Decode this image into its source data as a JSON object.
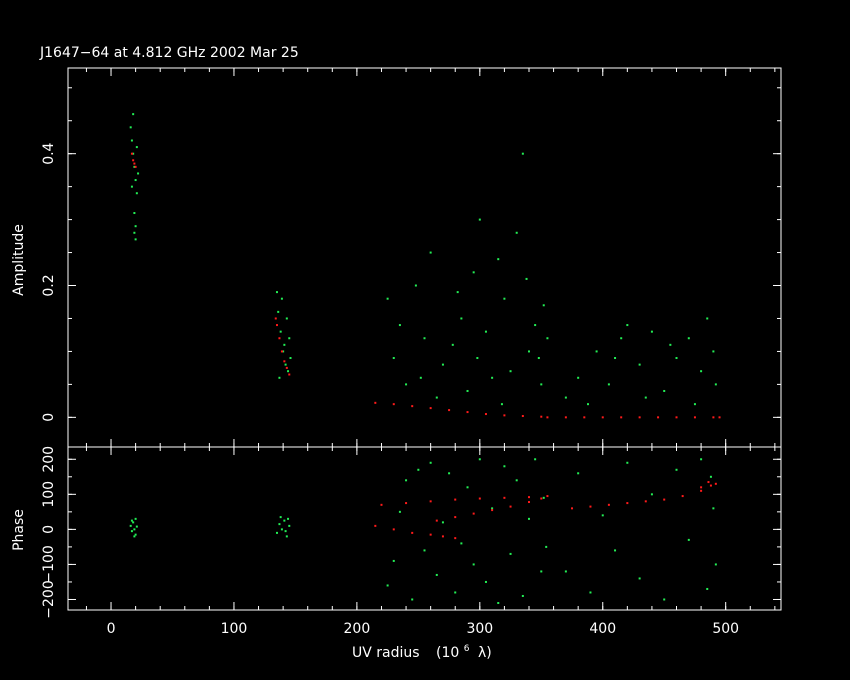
{
  "chart_data": [
    {
      "type": "scatter",
      "title": "J1647−64 at 4.812 GHz 2002 Mar 25",
      "ylabel": "Amplitude",
      "xlim": [
        -35,
        545
      ],
      "ylim": [
        -0.045,
        0.53
      ],
      "yticks": [
        0,
        0.2,
        0.4
      ],
      "ytick_labels": [
        "0",
        "0.2",
        "0.4"
      ],
      "series": [
        {
          "color": "#22ee55",
          "points": [
            [
              17,
              0.42
            ],
            [
              18,
              0.4
            ],
            [
              19,
              0.38
            ],
            [
              20,
              0.36
            ],
            [
              16,
              0.44
            ],
            [
              21,
              0.34
            ],
            [
              19,
              0.31
            ],
            [
              20,
              0.29
            ],
            [
              18,
              0.46
            ],
            [
              22,
              0.37
            ],
            [
              17,
              0.35
            ],
            [
              21,
              0.41
            ],
            [
              19,
              0.28
            ],
            [
              20,
              0.27
            ],
            [
              135,
              0.19
            ],
            [
              136,
              0.16
            ],
            [
              138,
              0.13
            ],
            [
              140,
              0.1
            ],
            [
              142,
              0.08
            ],
            [
              137,
              0.06
            ],
            [
              143,
              0.15
            ],
            [
              145,
              0.12
            ],
            [
              139,
              0.18
            ],
            [
              144,
              0.07
            ],
            [
              141,
              0.11
            ],
            [
              146,
              0.09
            ],
            [
              225,
              0.18
            ],
            [
              240,
              0.05
            ],
            [
              255,
              0.12
            ],
            [
              260,
              0.25
            ],
            [
              270,
              0.08
            ],
            [
              285,
              0.15
            ],
            [
              295,
              0.22
            ],
            [
              300,
              0.3
            ],
            [
              310,
              0.06
            ],
            [
              320,
              0.18
            ],
            [
              330,
              0.28
            ],
            [
              335,
              0.4
            ],
            [
              340,
              0.1
            ],
            [
              345,
              0.14
            ],
            [
              350,
              0.05
            ],
            [
              352,
              0.17
            ],
            [
              230,
              0.09
            ],
            [
              248,
              0.2
            ],
            [
              265,
              0.03
            ],
            [
              278,
              0.11
            ],
            [
              290,
              0.04
            ],
            [
              305,
              0.13
            ],
            [
              315,
              0.24
            ],
            [
              325,
              0.07
            ],
            [
              338,
              0.21
            ],
            [
              348,
              0.09
            ],
            [
              355,
              0.12
            ],
            [
              235,
              0.14
            ],
            [
              252,
              0.06
            ],
            [
              282,
              0.19
            ],
            [
              298,
              0.09
            ],
            [
              318,
              0.02
            ],
            [
              370,
              0.03
            ],
            [
              380,
              0.06
            ],
            [
              395,
              0.1
            ],
            [
              405,
              0.05
            ],
            [
              415,
              0.12
            ],
            [
              420,
              0.14
            ],
            [
              430,
              0.08
            ],
            [
              440,
              0.13
            ],
            [
              450,
              0.04
            ],
            [
              460,
              0.09
            ],
            [
              470,
              0.12
            ],
            [
              480,
              0.07
            ],
            [
              485,
              0.15
            ],
            [
              490,
              0.1
            ],
            [
              492,
              0.05
            ],
            [
              475,
              0.02
            ],
            [
              455,
              0.11
            ],
            [
              435,
              0.03
            ],
            [
              410,
              0.09
            ],
            [
              388,
              0.02
            ]
          ]
        },
        {
          "color": "#ff1a1a",
          "points": [
            [
              17,
              0.4
            ],
            [
              18,
              0.39
            ],
            [
              19,
              0.385
            ],
            [
              20,
              0.38
            ],
            [
              134,
              0.15
            ],
            [
              135,
              0.14
            ],
            [
              137,
              0.12
            ],
            [
              139,
              0.1
            ],
            [
              141,
              0.085
            ],
            [
              143,
              0.075
            ],
            [
              145,
              0.065
            ],
            [
              215,
              0.022
            ],
            [
              230,
              0.02
            ],
            [
              245,
              0.017
            ],
            [
              260,
              0.014
            ],
            [
              275,
              0.011
            ],
            [
              290,
              0.008
            ],
            [
              305,
              0.005
            ],
            [
              320,
              0.003
            ],
            [
              335,
              0.002
            ],
            [
              350,
              0.001
            ],
            [
              355,
              0.0
            ],
            [
              370,
              0.0
            ],
            [
              385,
              0.0
            ],
            [
              400,
              0.0
            ],
            [
              415,
              0.0
            ],
            [
              430,
              0.0
            ],
            [
              445,
              0.0
            ],
            [
              460,
              0.0
            ],
            [
              475,
              0.0
            ],
            [
              490,
              0.0
            ],
            [
              495,
              0.0
            ]
          ]
        }
      ]
    },
    {
      "type": "scatter",
      "ylabel": "Phase",
      "xlabel_main": "UV radius",
      "xlabel_unit": "(10",
      "xlabel_exp": "6",
      "xlabel_symbol": "λ)",
      "xlim": [
        -35,
        545
      ],
      "ylim": [
        -230,
        235
      ],
      "xticks": [
        0,
        100,
        200,
        300,
        400,
        500
      ],
      "xtick_labels": [
        "0",
        "100",
        "200",
        "300",
        "400",
        "500"
      ],
      "yticks": [
        -200,
        -100,
        0,
        100,
        200
      ],
      "ytick_labels": [
        "−200",
        "−100",
        "0",
        "100",
        "200"
      ],
      "series": [
        {
          "color": "#22ee55",
          "points": [
            [
              16,
              10
            ],
            [
              17,
              -5
            ],
            [
              18,
              20
            ],
            [
              19,
              0
            ],
            [
              20,
              -15
            ],
            [
              21,
              8
            ],
            [
              17,
              25
            ],
            [
              19,
              -20
            ],
            [
              20,
              30
            ],
            [
              135,
              -10
            ],
            [
              137,
              15
            ],
            [
              139,
              0
            ],
            [
              141,
              25
            ],
            [
              143,
              -20
            ],
            [
              145,
              10
            ],
            [
              138,
              35
            ],
            [
              142,
              -5
            ],
            [
              144,
              30
            ],
            [
              225,
              -160
            ],
            [
              230,
              -90
            ],
            [
              235,
              50
            ],
            [
              240,
              140
            ],
            [
              245,
              -200
            ],
            [
              250,
              170
            ],
            [
              255,
              -60
            ],
            [
              260,
              190
            ],
            [
              265,
              -130
            ],
            [
              270,
              20
            ],
            [
              275,
              160
            ],
            [
              280,
              -180
            ],
            [
              285,
              -40
            ],
            [
              290,
              120
            ],
            [
              295,
              -100
            ],
            [
              300,
              200
            ],
            [
              305,
              -150
            ],
            [
              310,
              60
            ],
            [
              315,
              -210
            ],
            [
              320,
              180
            ],
            [
              325,
              -70
            ],
            [
              330,
              140
            ],
            [
              335,
              -190
            ],
            [
              340,
              30
            ],
            [
              345,
              200
            ],
            [
              350,
              -120
            ],
            [
              352,
              90
            ],
            [
              354,
              -50
            ],
            [
              370,
              -120
            ],
            [
              380,
              160
            ],
            [
              390,
              -180
            ],
            [
              400,
              40
            ],
            [
              410,
              -60
            ],
            [
              420,
              190
            ],
            [
              430,
              -140
            ],
            [
              440,
              100
            ],
            [
              450,
              -200
            ],
            [
              460,
              170
            ],
            [
              470,
              -30
            ],
            [
              480,
              200
            ],
            [
              485,
              -170
            ],
            [
              490,
              60
            ],
            [
              492,
              -100
            ],
            [
              488,
              150
            ]
          ]
        },
        {
          "color": "#ff1a1a",
          "points": [
            [
              220,
              70
            ],
            [
              240,
              75
            ],
            [
              260,
              80
            ],
            [
              280,
              85
            ],
            [
              300,
              88
            ],
            [
              320,
              90
            ],
            [
              340,
              92
            ],
            [
              355,
              95
            ],
            [
              265,
              25
            ],
            [
              280,
              35
            ],
            [
              295,
              45
            ],
            [
              310,
              55
            ],
            [
              325,
              65
            ],
            [
              340,
              78
            ],
            [
              350,
              88
            ],
            [
              215,
              10
            ],
            [
              230,
              0
            ],
            [
              245,
              -10
            ],
            [
              260,
              -15
            ],
            [
              270,
              -20
            ],
            [
              280,
              -25
            ],
            [
              375,
              60
            ],
            [
              390,
              65
            ],
            [
              405,
              70
            ],
            [
              420,
              75
            ],
            [
              435,
              80
            ],
            [
              450,
              85
            ],
            [
              465,
              95
            ],
            [
              480,
              110
            ],
            [
              488,
              125
            ],
            [
              492,
              130
            ],
            [
              486,
              135
            ],
            [
              480,
              120
            ]
          ]
        }
      ]
    }
  ]
}
